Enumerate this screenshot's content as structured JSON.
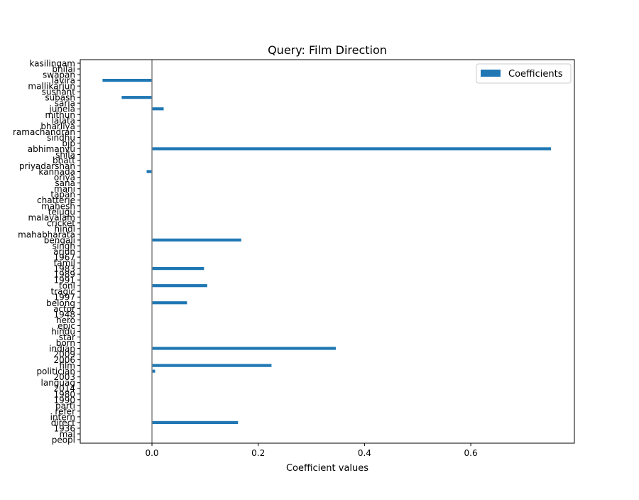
{
  "chart_data": {
    "type": "bar",
    "orientation": "horizontal",
    "title": "Query: Film Direction",
    "xlabel": "Coefficient values",
    "ylabel": "",
    "xlim": [
      -0.135,
      0.795
    ],
    "xticks": [
      "0.0",
      "0.2",
      "0.4",
      "0.6"
    ],
    "xtick_values": [
      0.0,
      0.2,
      0.4,
      0.6
    ],
    "zero_line": true,
    "grid": false,
    "legend": {
      "position": "top-right",
      "entries": [
        "Coefficients"
      ]
    },
    "bar_color": "#1f77b4",
    "categories": [
      "kasilingam",
      "bhilai",
      "swapan",
      "lavira",
      "mallikarjun",
      "sushant",
      "subash",
      "saria",
      "junela",
      "mithun",
      "lalata",
      "bharliya",
      "ramachandran",
      "sindhu",
      "bjp",
      "abhimanyu",
      "shila",
      "bhatt",
      "priyadarshan",
      "kannada",
      "oriya",
      "sana",
      "mani",
      "tapan",
      "chatterje",
      "mahesh",
      "telugu",
      "malayalam",
      "cricket",
      "hindi",
      "mahabharata",
      "bengali",
      "singh",
      "arjun",
      "1967",
      "tamil",
      "1983",
      "1989",
      "1991",
      "tonl",
      "tragic",
      "1997",
      "belong",
      "actor",
      "1948",
      "hero",
      "epic",
      "hindu",
      "star",
      "born",
      "indian",
      "2009",
      "2006",
      "film",
      "politician",
      "2003",
      "languag",
      "2014",
      "1980",
      "1990",
      "parti",
      "refer",
      "intern",
      "direct",
      "1936",
      "mal",
      "peopl"
    ],
    "values": [
      0,
      0,
      0,
      -0.093,
      0,
      0,
      -0.057,
      0,
      0.022,
      0,
      0,
      0,
      0,
      0,
      0,
      0.751,
      0,
      0,
      0,
      -0.01,
      0,
      0,
      0,
      0,
      0,
      0,
      0,
      0,
      0,
      0,
      0,
      0.168,
      0,
      0,
      0,
      0,
      0.098,
      0,
      0,
      0.104,
      0,
      0,
      0.066,
      0,
      0,
      0,
      0,
      0,
      0,
      0,
      0.346,
      0,
      0,
      0.225,
      0.006,
      0,
      0,
      0,
      0,
      0,
      0,
      0,
      0,
      0.162,
      0,
      0,
      0
    ]
  }
}
